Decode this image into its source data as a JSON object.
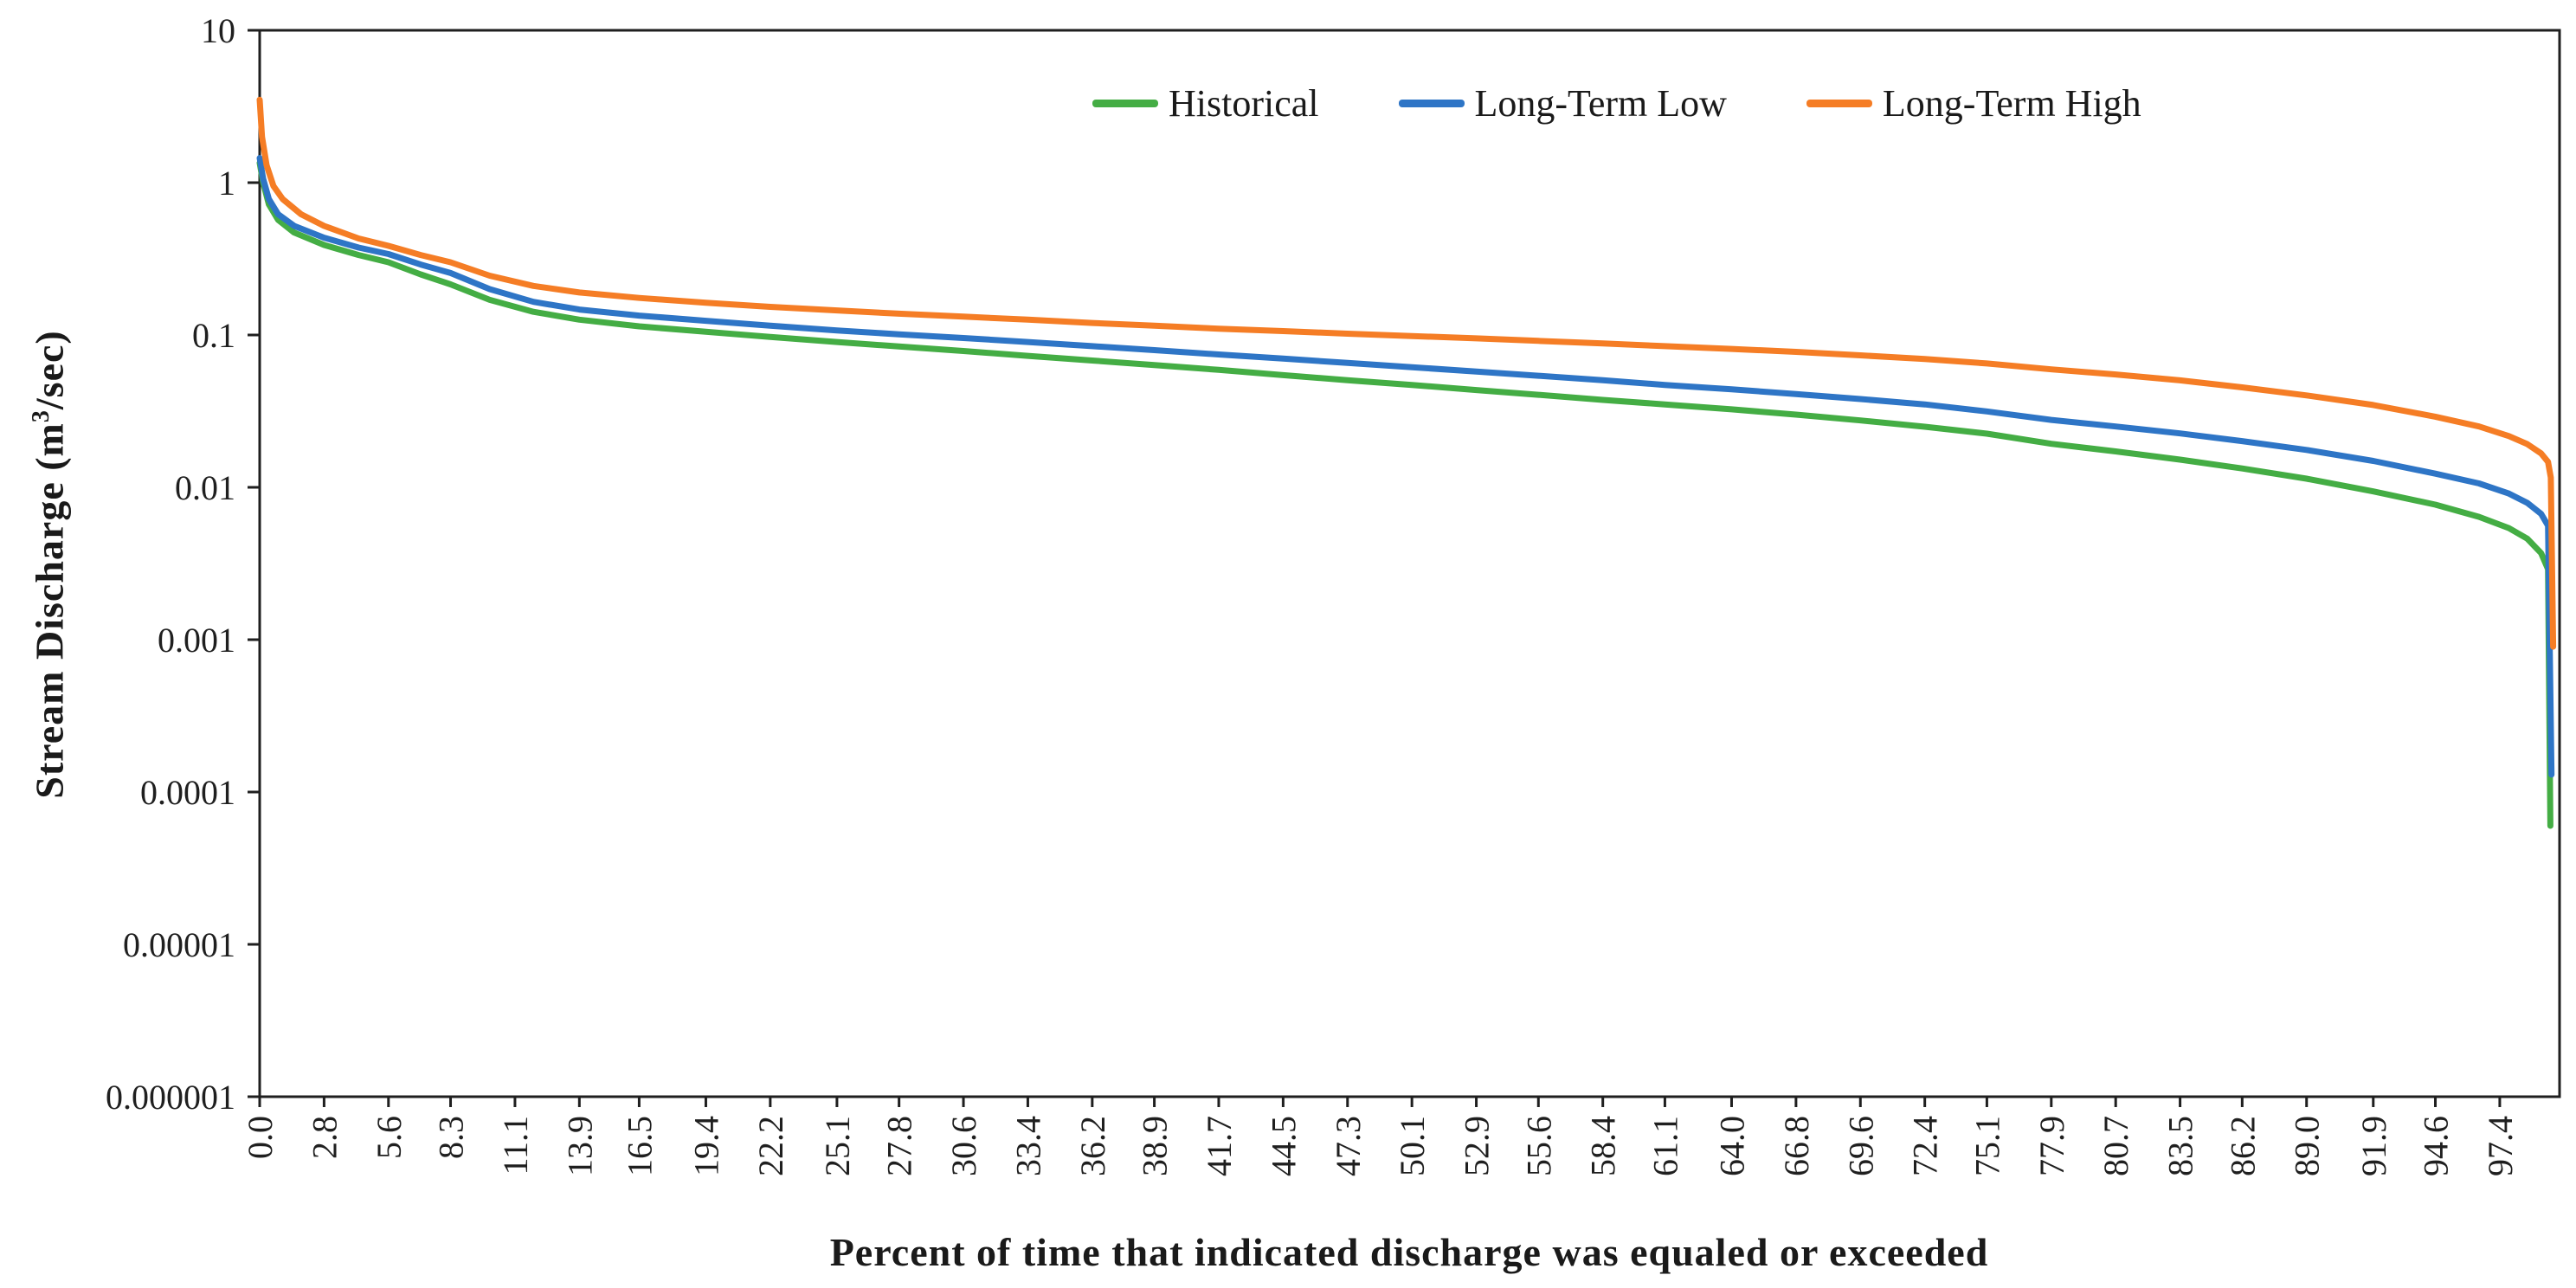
{
  "chart_data": {
    "type": "line",
    "title": "",
    "xlabel": "Percent of time that indicated discharge was equaled or exceeded",
    "ylabel": "Stream Discharge (m³/sec)",
    "ylabel_prefix": "Stream Discharge (m",
    "ylabel_superscript": "3",
    "ylabel_suffix": "/sec)",
    "y_scale": "log",
    "ylim": [
      1e-06,
      10
    ],
    "xlim": [
      0,
      100
    ],
    "grid": false,
    "legend_position": "top-center-inside",
    "y_ticks": [
      "10",
      "1",
      "0.1",
      "0.01",
      "0.001",
      "0.0001",
      "0.00001",
      "0.000001"
    ],
    "x_ticks": [
      "0.0",
      "2.8",
      "5.6",
      "8.3",
      "11.1",
      "13.9",
      "16.5",
      "19.4",
      "22.2",
      "25.1",
      "27.8",
      "30.6",
      "33.4",
      "36.2",
      "38.9",
      "41.7",
      "44.5",
      "47.3",
      "50.1",
      "52.9",
      "55.6",
      "58.4",
      "61.1",
      "64.0",
      "66.8",
      "69.6",
      "72.4",
      "75.1",
      "77.9",
      "80.7",
      "83.5",
      "86.2",
      "89.0",
      "91.9",
      "94.6",
      "97.4"
    ],
    "series": [
      {
        "name": "Historical",
        "color": "#44ad44",
        "points": [
          [
            0,
            1.35
          ],
          [
            0.15,
            1.0
          ],
          [
            0.4,
            0.72
          ],
          [
            0.8,
            0.57
          ],
          [
            1.5,
            0.47
          ],
          [
            2.8,
            0.39
          ],
          [
            4.3,
            0.335
          ],
          [
            5.6,
            0.3
          ],
          [
            7,
            0.25
          ],
          [
            8.3,
            0.215
          ],
          [
            10,
            0.17
          ],
          [
            11.9,
            0.142
          ],
          [
            13.9,
            0.126
          ],
          [
            16.5,
            0.114
          ],
          [
            19.4,
            0.105
          ],
          [
            22.2,
            0.097
          ],
          [
            25.1,
            0.09
          ],
          [
            27.8,
            0.084
          ],
          [
            30.6,
            0.0785
          ],
          [
            33.4,
            0.073
          ],
          [
            36.2,
            0.068
          ],
          [
            38.9,
            0.0635
          ],
          [
            41.7,
            0.059
          ],
          [
            44.5,
            0.0545
          ],
          [
            47.3,
            0.0505
          ],
          [
            50.1,
            0.047
          ],
          [
            52.9,
            0.0435
          ],
          [
            55.6,
            0.0405
          ],
          [
            58.4,
            0.0375
          ],
          [
            61.1,
            0.035
          ],
          [
            64,
            0.0325
          ],
          [
            66.8,
            0.03
          ],
          [
            69.6,
            0.0275
          ],
          [
            72.4,
            0.025
          ],
          [
            75.1,
            0.0225
          ],
          [
            77.9,
            0.0193
          ],
          [
            80.7,
            0.0172
          ],
          [
            83.5,
            0.0152
          ],
          [
            86.2,
            0.0133
          ],
          [
            89,
            0.0114
          ],
          [
            91.9,
            0.0094
          ],
          [
            94.6,
            0.0077
          ],
          [
            96.5,
            0.0064
          ],
          [
            97.8,
            0.0054
          ],
          [
            98.6,
            0.0046
          ],
          [
            99.2,
            0.0037
          ],
          [
            99.5,
            0.0029
          ],
          [
            99.6,
            6e-05
          ]
        ]
      },
      {
        "name": "Long-Term Low",
        "color": "#2e75c6",
        "points": [
          [
            0,
            1.45
          ],
          [
            0.15,
            1.06
          ],
          [
            0.4,
            0.78
          ],
          [
            0.8,
            0.62
          ],
          [
            1.5,
            0.52
          ],
          [
            2.8,
            0.435
          ],
          [
            4.3,
            0.375
          ],
          [
            5.6,
            0.34
          ],
          [
            7,
            0.29
          ],
          [
            8.3,
            0.255
          ],
          [
            10,
            0.2
          ],
          [
            11.9,
            0.165
          ],
          [
            13.9,
            0.147
          ],
          [
            16.5,
            0.134
          ],
          [
            19.4,
            0.124
          ],
          [
            22.2,
            0.115
          ],
          [
            25.1,
            0.107
          ],
          [
            27.8,
            0.101
          ],
          [
            30.6,
            0.0955
          ],
          [
            33.4,
            0.09
          ],
          [
            36.2,
            0.0845
          ],
          [
            38.9,
            0.0795
          ],
          [
            41.7,
            0.0745
          ],
          [
            44.5,
            0.07
          ],
          [
            47.3,
            0.0655
          ],
          [
            50.1,
            0.0615
          ],
          [
            52.9,
            0.0575
          ],
          [
            55.6,
            0.054
          ],
          [
            58.4,
            0.0505
          ],
          [
            61.1,
            0.047
          ],
          [
            64,
            0.044
          ],
          [
            66.8,
            0.041
          ],
          [
            69.6,
            0.038
          ],
          [
            72.4,
            0.035
          ],
          [
            75.1,
            0.0315
          ],
          [
            77.9,
            0.0277
          ],
          [
            80.7,
            0.0251
          ],
          [
            83.5,
            0.0226
          ],
          [
            86.2,
            0.0201
          ],
          [
            89,
            0.0176
          ],
          [
            91.9,
            0.0149
          ],
          [
            94.6,
            0.0123
          ],
          [
            96.5,
            0.0106
          ],
          [
            97.8,
            0.0091
          ],
          [
            98.6,
            0.0079
          ],
          [
            99.2,
            0.0067
          ],
          [
            99.5,
            0.0056
          ],
          [
            99.65,
            0.00013
          ]
        ]
      },
      {
        "name": "Long-Term High",
        "color": "#f57d25",
        "points": [
          [
            0,
            3.5
          ],
          [
            0.1,
            2.0
          ],
          [
            0.3,
            1.3
          ],
          [
            0.6,
            0.95
          ],
          [
            1,
            0.78
          ],
          [
            1.8,
            0.62
          ],
          [
            2.8,
            0.52
          ],
          [
            4.3,
            0.43
          ],
          [
            5.6,
            0.385
          ],
          [
            7,
            0.335
          ],
          [
            8.3,
            0.3
          ],
          [
            10,
            0.245
          ],
          [
            11.9,
            0.21
          ],
          [
            13.9,
            0.19
          ],
          [
            16.5,
            0.175
          ],
          [
            19.4,
            0.163
          ],
          [
            22.2,
            0.153
          ],
          [
            25.1,
            0.145
          ],
          [
            27.8,
            0.138
          ],
          [
            30.6,
            0.132
          ],
          [
            33.4,
            0.126
          ],
          [
            36.2,
            0.12
          ],
          [
            38.9,
            0.115
          ],
          [
            41.7,
            0.11
          ],
          [
            44.5,
            0.106
          ],
          [
            47.3,
            0.102
          ],
          [
            50.1,
            0.0985
          ],
          [
            52.9,
            0.095
          ],
          [
            55.6,
            0.0915
          ],
          [
            58.4,
            0.088
          ],
          [
            61.1,
            0.0845
          ],
          [
            64,
            0.081
          ],
          [
            66.8,
            0.0775
          ],
          [
            69.6,
            0.0735
          ],
          [
            72.4,
            0.0695
          ],
          [
            75.1,
            0.065
          ],
          [
            77.9,
            0.0595
          ],
          [
            80.7,
            0.0551
          ],
          [
            83.5,
            0.0504
          ],
          [
            86.2,
            0.0453
          ],
          [
            89,
            0.0401
          ],
          [
            91.9,
            0.0347
          ],
          [
            94.6,
            0.0291
          ],
          [
            96.5,
            0.0251
          ],
          [
            97.8,
            0.0217
          ],
          [
            98.6,
            0.0192
          ],
          [
            99.2,
            0.0167
          ],
          [
            99.5,
            0.0147
          ],
          [
            99.62,
            0.0116
          ],
          [
            99.72,
            0.0009
          ]
        ]
      }
    ]
  }
}
